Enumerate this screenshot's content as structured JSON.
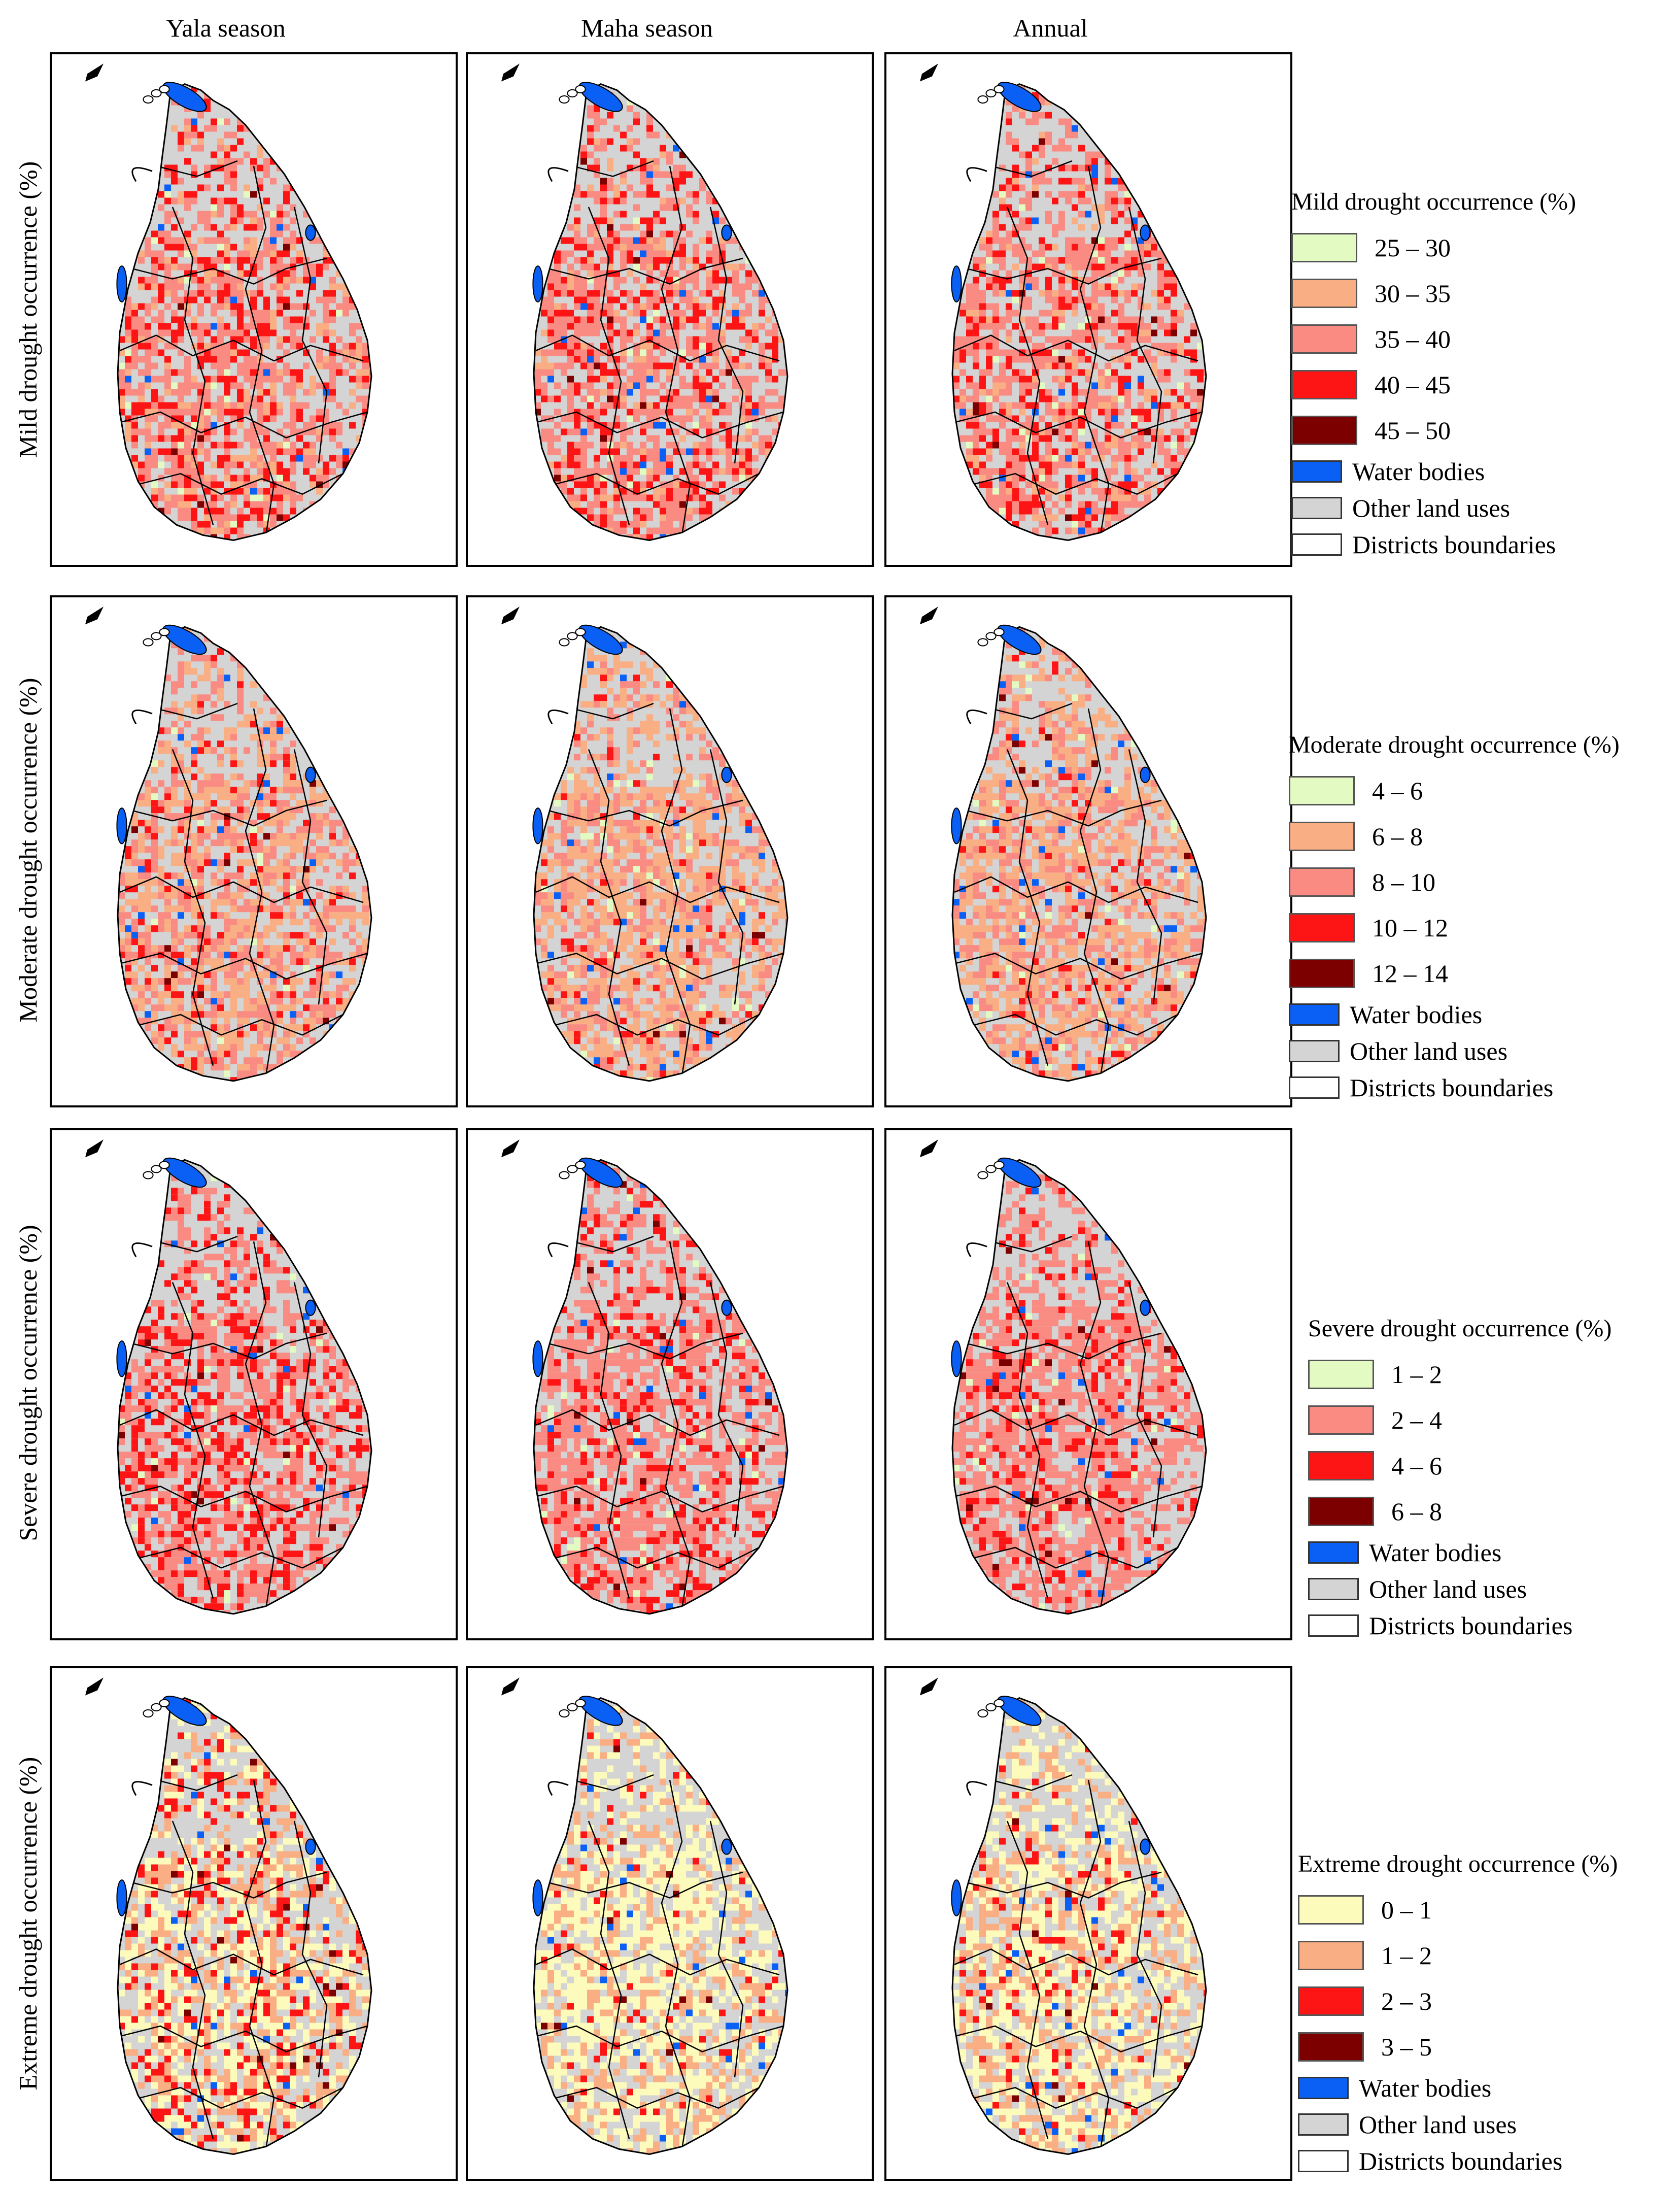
{
  "columns": [
    "Yala season",
    "Maha season",
    "Annual"
  ],
  "rows": [
    {
      "label": "Mild drought occurrence (%)",
      "legend_title": "Mild drought occurrence (%)",
      "classes": [
        {
          "label": "25 – 30",
          "color": "#e3fbc2"
        },
        {
          "label": "30 – 35",
          "color": "#f9ae83"
        },
        {
          "label": "35 – 40",
          "color": "#f98b83"
        },
        {
          "label": "40 – 45",
          "color": "#fd1515"
        },
        {
          "label": "45 – 50",
          "color": "#7d0000"
        }
      ],
      "dominant": [
        [
          0.03,
          0.14,
          0.55,
          0.27,
          0.01
        ],
        [
          0.02,
          0.1,
          0.6,
          0.27,
          0.01
        ],
        [
          0.03,
          0.13,
          0.58,
          0.25,
          0.01
        ]
      ]
    },
    {
      "label": "Moderate drought occurrence (%)",
      "legend_title": "Moderate drought occurrence (%)",
      "classes": [
        {
          "label": "4 – 6",
          "color": "#e3fbc2"
        },
        {
          "label": "6 – 8",
          "color": "#f9ae83"
        },
        {
          "label": "8 – 10",
          "color": "#f98b83"
        },
        {
          "label": "10 – 12",
          "color": "#fd1515"
        },
        {
          "label": "12 – 14",
          "color": "#7d0000"
        }
      ],
      "dominant": [
        [
          0.03,
          0.45,
          0.4,
          0.11,
          0.01
        ],
        [
          0.03,
          0.58,
          0.33,
          0.05,
          0.01
        ],
        [
          0.03,
          0.55,
          0.36,
          0.05,
          0.01
        ]
      ]
    },
    {
      "label": "Severe drought occurrence (%)",
      "legend_title": "Severe drought occurrence (%)",
      "classes": [
        {
          "label": "1 – 2",
          "color": "#e3fbc2"
        },
        {
          "label": "2 – 4",
          "color": "#f98b83"
        },
        {
          "label": "4 – 6",
          "color": "#fd1515"
        },
        {
          "label": "6 – 8",
          "color": "#7d0000"
        }
      ],
      "dominant": [
        [
          0.03,
          0.62,
          0.34,
          0.01
        ],
        [
          0.03,
          0.72,
          0.24,
          0.01
        ],
        [
          0.03,
          0.76,
          0.2,
          0.01
        ]
      ]
    },
    {
      "label": "Extreme drought occurrence (%)",
      "legend_title": "Extreme drought occurrence (%)",
      "classes": [
        {
          "label": "0 – 1",
          "color": "#fdfbbc"
        },
        {
          "label": "1 – 2",
          "color": "#f9ae83"
        },
        {
          "label": "2 – 3",
          "color": "#fd1515"
        },
        {
          "label": "3 – 5",
          "color": "#7d0000"
        }
      ],
      "dominant": [
        [
          0.4,
          0.36,
          0.22,
          0.02
        ],
        [
          0.6,
          0.32,
          0.07,
          0.01
        ],
        [
          0.52,
          0.38,
          0.09,
          0.01
        ]
      ]
    }
  ],
  "fixed_legend": [
    {
      "label": "Water bodies",
      "color": "#0a5ff5"
    },
    {
      "label": "Other land uses",
      "color": "#d4d4d4"
    },
    {
      "label": "Districts boundaries",
      "color": "#ffffff"
    }
  ],
  "colors": {
    "water": "#0a5ff5",
    "other_land": "#d4d4d4",
    "boundary": "#000000"
  }
}
